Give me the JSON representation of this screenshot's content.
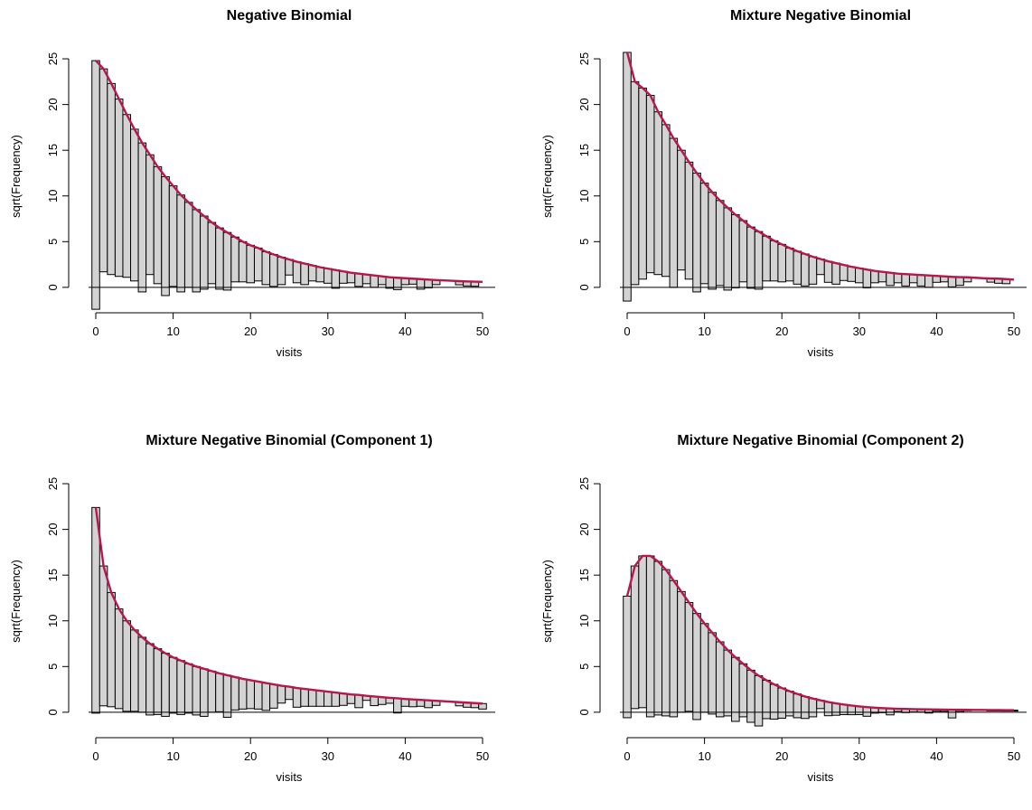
{
  "chart_data": [
    {
      "type": "bar",
      "variant": "hanging-rootogram",
      "title": "Negative Binomial",
      "xlabel": "visits",
      "ylabel": "sqrt(Frequency)",
      "xlim": [
        0,
        50
      ],
      "ylim": [
        -1.2,
        25.5
      ],
      "xticks": [
        "0",
        "10",
        "20",
        "30",
        "40",
        "50"
      ],
      "yticks": [
        "0",
        "5",
        "10",
        "15",
        "20",
        "25"
      ],
      "x": [
        0,
        1,
        2,
        3,
        4,
        5,
        6,
        7,
        8,
        9,
        10,
        11,
        12,
        13,
        14,
        15,
        16,
        17,
        18,
        19,
        20,
        21,
        22,
        23,
        24,
        25,
        26,
        27,
        28,
        29,
        30,
        31,
        32,
        33,
        34,
        35,
        36,
        37,
        38,
        39,
        40,
        41,
        42,
        43,
        44,
        45,
        46,
        47,
        48,
        49,
        50
      ],
      "series": [
        {
          "role": "observed",
          "values": [
            27.2,
            22.2,
            20.9,
            19.4,
            17.8,
            16.6,
            16.3,
            13.1,
            12.8,
            13.0,
            11.0,
            10.6,
            9.3,
            9.0,
            8.0,
            6.7,
            6.7,
            6.3,
            4.9,
            4.4,
            4.1,
            3.6,
            3.6,
            3.5,
            3.0,
            1.7,
            2.3,
            2.3,
            1.7,
            1.6,
            1.6,
            2.0,
            1.3,
            1.1,
            1.4,
            1.0,
            1.3,
            0.9,
            1.2,
            1.3,
            0.7,
            0.6,
            1.1,
            0.9,
            0.5,
            0,
            0,
            0.4,
            0.5,
            0.5,
            0
          ]
        },
        {
          "role": "expected",
          "values": [
            24.8,
            23.9,
            22.3,
            20.6,
            18.9,
            17.3,
            15.8,
            14.5,
            13.2,
            12.1,
            11.1,
            10.1,
            9.3,
            8.5,
            7.8,
            7.1,
            6.5,
            6.0,
            5.5,
            5.0,
            4.6,
            4.3,
            3.9,
            3.6,
            3.3,
            3.05,
            2.8,
            2.6,
            2.4,
            2.2,
            2.05,
            1.9,
            1.75,
            1.6,
            1.5,
            1.4,
            1.3,
            1.2,
            1.1,
            1.05,
            1.0,
            0.95,
            0.9,
            0.85,
            0.8,
            0.76,
            0.72,
            0.68,
            0.65,
            0.62,
            0.6
          ]
        }
      ]
    },
    {
      "type": "bar",
      "variant": "hanging-rootogram",
      "title": "Mixture Negative Binomial",
      "xlabel": "visits",
      "ylabel": "sqrt(Frequency)",
      "xlim": [
        0,
        50
      ],
      "ylim": [
        -1.2,
        25.5
      ],
      "xticks": [
        "0",
        "10",
        "20",
        "30",
        "40",
        "50"
      ],
      "yticks": [
        "0",
        "5",
        "10",
        "15",
        "20",
        "25"
      ],
      "x": [
        0,
        1,
        2,
        3,
        4,
        5,
        6,
        7,
        8,
        9,
        10,
        11,
        12,
        13,
        14,
        15,
        16,
        17,
        18,
        19,
        20,
        21,
        22,
        23,
        24,
        25,
        26,
        27,
        28,
        29,
        30,
        31,
        32,
        33,
        34,
        35,
        36,
        37,
        38,
        39,
        40,
        41,
        42,
        43,
        44,
        45,
        46,
        47,
        48,
        49,
        50
      ],
      "series": [
        {
          "role": "observed",
          "values": [
            27.2,
            22.2,
            20.9,
            19.4,
            17.8,
            16.6,
            16.3,
            13.1,
            12.8,
            13.0,
            11.0,
            10.6,
            9.3,
            9.0,
            8.0,
            6.7,
            6.7,
            6.3,
            4.9,
            4.4,
            4.1,
            3.6,
            3.6,
            3.5,
            3.0,
            1.7,
            2.3,
            2.3,
            1.7,
            1.6,
            1.6,
            2.0,
            1.3,
            1.1,
            1.4,
            1.0,
            1.3,
            0.9,
            1.2,
            1.3,
            0.7,
            0.6,
            1.1,
            0.9,
            0.5,
            0,
            0,
            0.4,
            0.5,
            0.5,
            0
          ]
        },
        {
          "role": "expected",
          "values": [
            25.7,
            22.5,
            21.8,
            21.0,
            19.2,
            17.8,
            16.3,
            15.0,
            13.7,
            12.5,
            11.4,
            10.4,
            9.5,
            8.7,
            7.95,
            7.3,
            6.6,
            6.1,
            5.6,
            5.1,
            4.7,
            4.3,
            3.95,
            3.65,
            3.35,
            3.1,
            2.85,
            2.65,
            2.45,
            2.25,
            2.1,
            1.95,
            1.8,
            1.7,
            1.6,
            1.5,
            1.45,
            1.4,
            1.35,
            1.3,
            1.25,
            1.2,
            1.15,
            1.12,
            1.1,
            1.05,
            1.0,
            0.97,
            0.95,
            0.9,
            0.85
          ]
        }
      ]
    },
    {
      "type": "bar",
      "variant": "hanging-rootogram",
      "title": "Mixture Negative Binomial (Component 1)",
      "xlabel": "visits",
      "ylabel": "sqrt(Frequency)",
      "xlim": [
        0,
        50
      ],
      "ylim": [
        -1.2,
        25.5
      ],
      "xticks": [
        "0",
        "10",
        "20",
        "30",
        "40",
        "50"
      ],
      "yticks": [
        "0",
        "5",
        "10",
        "15",
        "20",
        "25"
      ],
      "x": [
        0,
        1,
        2,
        3,
        4,
        5,
        6,
        7,
        8,
        9,
        10,
        11,
        12,
        13,
        14,
        15,
        16,
        17,
        18,
        19,
        20,
        21,
        22,
        23,
        24,
        25,
        26,
        27,
        28,
        29,
        30,
        31,
        32,
        33,
        34,
        35,
        36,
        37,
        38,
        39,
        40,
        41,
        42,
        43,
        44,
        45,
        46,
        47,
        48,
        49,
        50
      ],
      "series": [
        {
          "role": "observed",
          "values": [
            22.5,
            15.3,
            12.5,
            10.9,
            9.9,
            8.9,
            8.2,
            7.8,
            7.2,
            6.9,
            6.1,
            5.9,
            5.4,
            5.3,
            5.2,
            4.5,
            4.2,
            4.6,
            3.6,
            3.3,
            3.1,
            3.0,
            3.0,
            2.6,
            1.9,
            1.4,
            2.1,
            1.9,
            1.8,
            1.7,
            1.6,
            1.5,
            1.3,
            1.0,
            1.4,
            0.5,
            1.0,
            0.8,
            0.6,
            1.6,
            0.8,
            0.8,
            0.7,
            0.8,
            0.5,
            0,
            0,
            0.4,
            0.5,
            0.5,
            0.6
          ]
        },
        {
          "role": "expected",
          "values": [
            22.4,
            16.0,
            13.1,
            11.3,
            10.0,
            9.0,
            8.2,
            7.5,
            6.95,
            6.45,
            6.0,
            5.65,
            5.3,
            5.0,
            4.75,
            4.5,
            4.25,
            4.05,
            3.85,
            3.65,
            3.5,
            3.35,
            3.2,
            3.05,
            2.9,
            2.8,
            2.65,
            2.55,
            2.45,
            2.35,
            2.25,
            2.15,
            2.05,
            1.95,
            1.9,
            1.8,
            1.72,
            1.65,
            1.58,
            1.52,
            1.45,
            1.4,
            1.35,
            1.3,
            1.25,
            1.2,
            1.15,
            1.1,
            1.05,
            1.0,
            0.95
          ]
        }
      ]
    },
    {
      "type": "bar",
      "variant": "hanging-rootogram",
      "title": "Mixture Negative Binomial (Component 2)",
      "xlabel": "visits",
      "ylabel": "sqrt(Frequency)",
      "xlim": [
        0,
        50
      ],
      "ylim": [
        -1.2,
        25.5
      ],
      "xticks": [
        "0",
        "10",
        "20",
        "30",
        "40",
        "50"
      ],
      "yticks": [
        "0",
        "5",
        "10",
        "15",
        "20",
        "25"
      ],
      "x": [
        0,
        1,
        2,
        3,
        4,
        5,
        6,
        7,
        8,
        9,
        10,
        11,
        12,
        13,
        14,
        15,
        16,
        17,
        18,
        19,
        20,
        21,
        22,
        23,
        24,
        25,
        26,
        27,
        28,
        29,
        30,
        31,
        32,
        33,
        34,
        35,
        36,
        37,
        38,
        39,
        40,
        41,
        42,
        43,
        44,
        45,
        46,
        47,
        48,
        49,
        50
      ],
      "series": [
        {
          "role": "observed",
          "values": [
            13.3,
            15.6,
            16.6,
            17.6,
            16.8,
            16.0,
            14.9,
            13.2,
            11.9,
            11.6,
            9.7,
            8.9,
            8.2,
            7.2,
            7.0,
            5.8,
            5.7,
            5.5,
            4.2,
            3.8,
            3.3,
            2.7,
            2.6,
            2.4,
            2.0,
            0.9,
            1.5,
            1.3,
            1.1,
            1.0,
            0.9,
            1.0,
            0.6,
            0.5,
            0.7,
            0.3,
            0.4,
            0.3,
            0.3,
            0.4,
            0.2,
            0.2,
            0.9,
            0.2,
            0.1,
            0,
            0,
            0.1,
            0.1,
            0.1,
            0.1
          ]
        },
        {
          "role": "expected",
          "values": [
            12.7,
            16.0,
            17.1,
            17.1,
            16.5,
            15.6,
            14.4,
            13.2,
            12.0,
            10.8,
            9.7,
            8.7,
            7.7,
            6.8,
            6.0,
            5.3,
            4.6,
            4.0,
            3.5,
            3.05,
            2.65,
            2.3,
            2.0,
            1.72,
            1.5,
            1.3,
            1.12,
            0.97,
            0.84,
            0.73,
            0.64,
            0.56,
            0.5,
            0.45,
            0.41,
            0.38,
            0.36,
            0.34,
            0.32,
            0.31,
            0.3,
            0.29,
            0.28,
            0.27,
            0.26,
            0.25,
            0.25,
            0.24,
            0.24,
            0.23,
            0.23
          ]
        }
      ]
    }
  ],
  "style": {
    "bar_fill": "#d3d3d3",
    "bar_stroke": "#000000",
    "expected_line": "#b5174f",
    "axis_color": "#000000"
  }
}
